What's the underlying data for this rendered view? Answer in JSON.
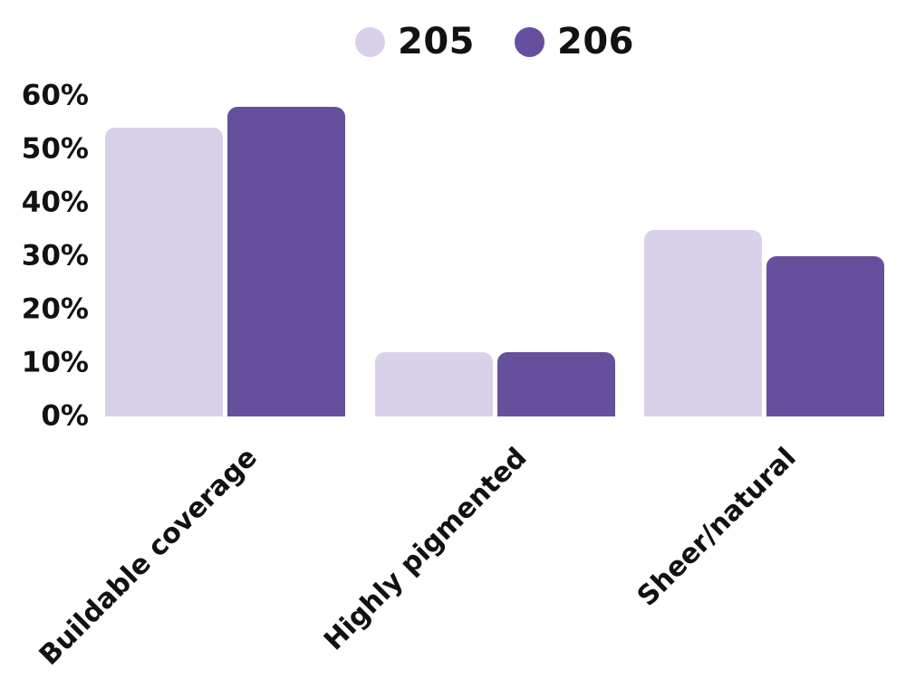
{
  "chart_data": {
    "type": "bar",
    "title": "",
    "xlabel": "",
    "ylabel": "",
    "categories": [
      "Buildable coverage",
      "Highly pigmented",
      "Sheer/natural"
    ],
    "series": [
      {
        "name": "205",
        "color": "#d9d0ea",
        "values": [
          54,
          12,
          35
        ]
      },
      {
        "name": "206",
        "color": "#66509e",
        "values": [
          58,
          12,
          30
        ]
      }
    ],
    "ylim": [
      0,
      60
    ],
    "y_tick_step": 10,
    "y_ticks": [
      "60%",
      "50%",
      "40%",
      "30%",
      "20%",
      "10%",
      "0%"
    ],
    "value_unit": "%",
    "grid": false,
    "axis_lines": false,
    "legend_position": "top-center",
    "x_label_rotation_deg": -45
  },
  "colors": {
    "background": "#ffffff",
    "text": "#121212",
    "series_205": "#d9d0ea",
    "series_206": "#66509e"
  },
  "legend": {
    "items": [
      {
        "label": "205",
        "swatch": "circle",
        "color": "#d9d0ea"
      },
      {
        "label": "206",
        "swatch": "circle",
        "color": "#66509e"
      }
    ]
  }
}
